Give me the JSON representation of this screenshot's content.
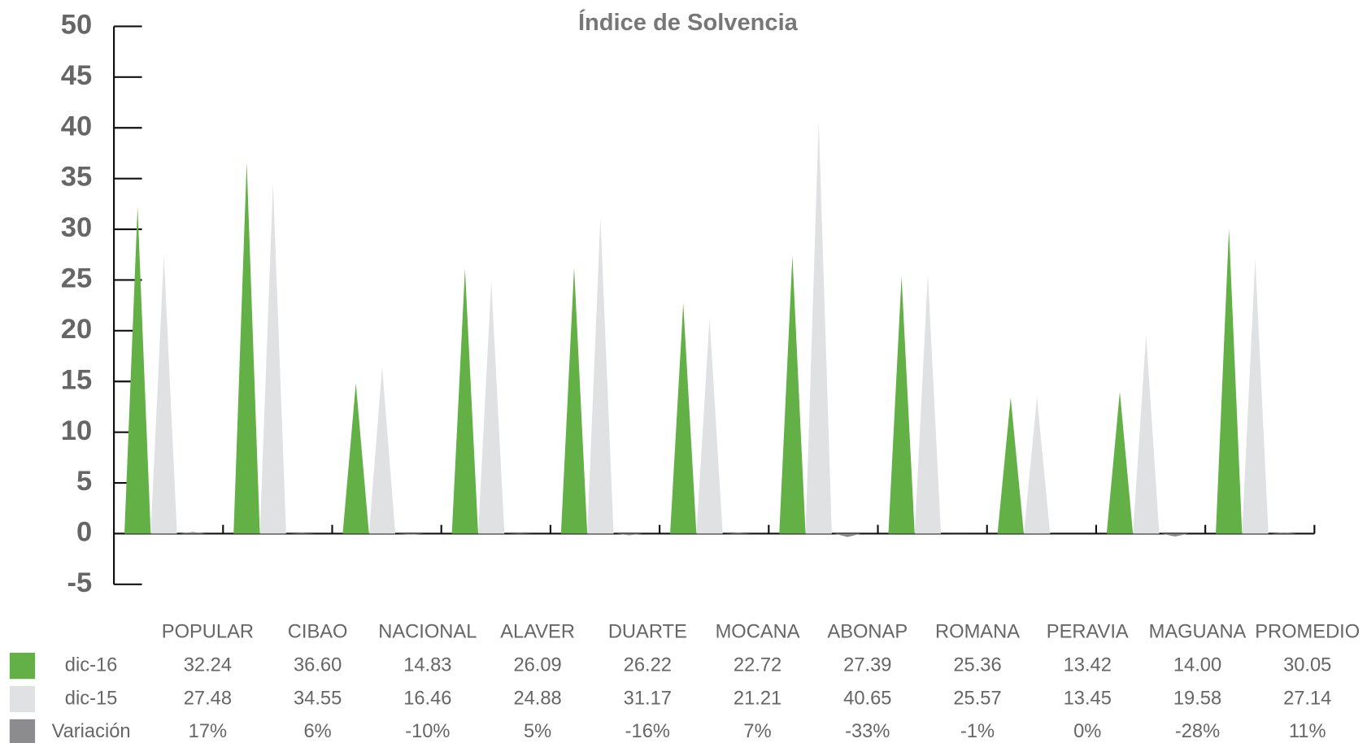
{
  "chart_data": {
    "type": "spike",
    "title": "Índice de Solvencia",
    "categories": [
      "POPULAR",
      "CIBAO",
      "NACIONAL",
      "ALAVER",
      "DUARTE",
      "MOCANA",
      "ABONAP",
      "ROMANA",
      "PERAVIA",
      "MAGUANA",
      "PROMEDIO"
    ],
    "series": [
      {
        "name": "dic-16",
        "color": "#62b046",
        "values": [
          32.24,
          36.6,
          14.83,
          26.09,
          26.22,
          22.72,
          27.39,
          25.36,
          13.42,
          14.0,
          30.05
        ],
        "value_labels": [
          "32.24",
          "36.60",
          "14.83",
          "26.09",
          "26.22",
          "22.72",
          "27.39",
          "25.36",
          "13.42",
          "14.00",
          "30.05"
        ]
      },
      {
        "name": "dic-15",
        "color": "#e0e1e2",
        "values": [
          27.48,
          34.55,
          16.46,
          24.88,
          31.17,
          21.21,
          40.65,
          25.57,
          13.45,
          19.58,
          27.14
        ],
        "value_labels": [
          "27.48",
          "34.55",
          "16.46",
          "24.88",
          "31.17",
          "21.21",
          "40.65",
          "25.57",
          "13.45",
          "19.58",
          "27.14"
        ]
      },
      {
        "name": "Variación",
        "color": "#8c8c8f",
        "values": [
          0.17,
          0.06,
          -0.1,
          0.05,
          -0.16,
          0.07,
          -0.33,
          -0.01,
          0,
          -0.28,
          0.11
        ],
        "value_labels": [
          "17%",
          "6%",
          "-10%",
          "5%",
          "-16%",
          "7%",
          "-33%",
          "-1%",
          "0%",
          "-28%",
          "11%"
        ]
      }
    ],
    "ylim": [
      -5,
      50
    ],
    "yticks": [
      50,
      45,
      40,
      35,
      30,
      25,
      20,
      15,
      10,
      5,
      0,
      -5
    ]
  }
}
